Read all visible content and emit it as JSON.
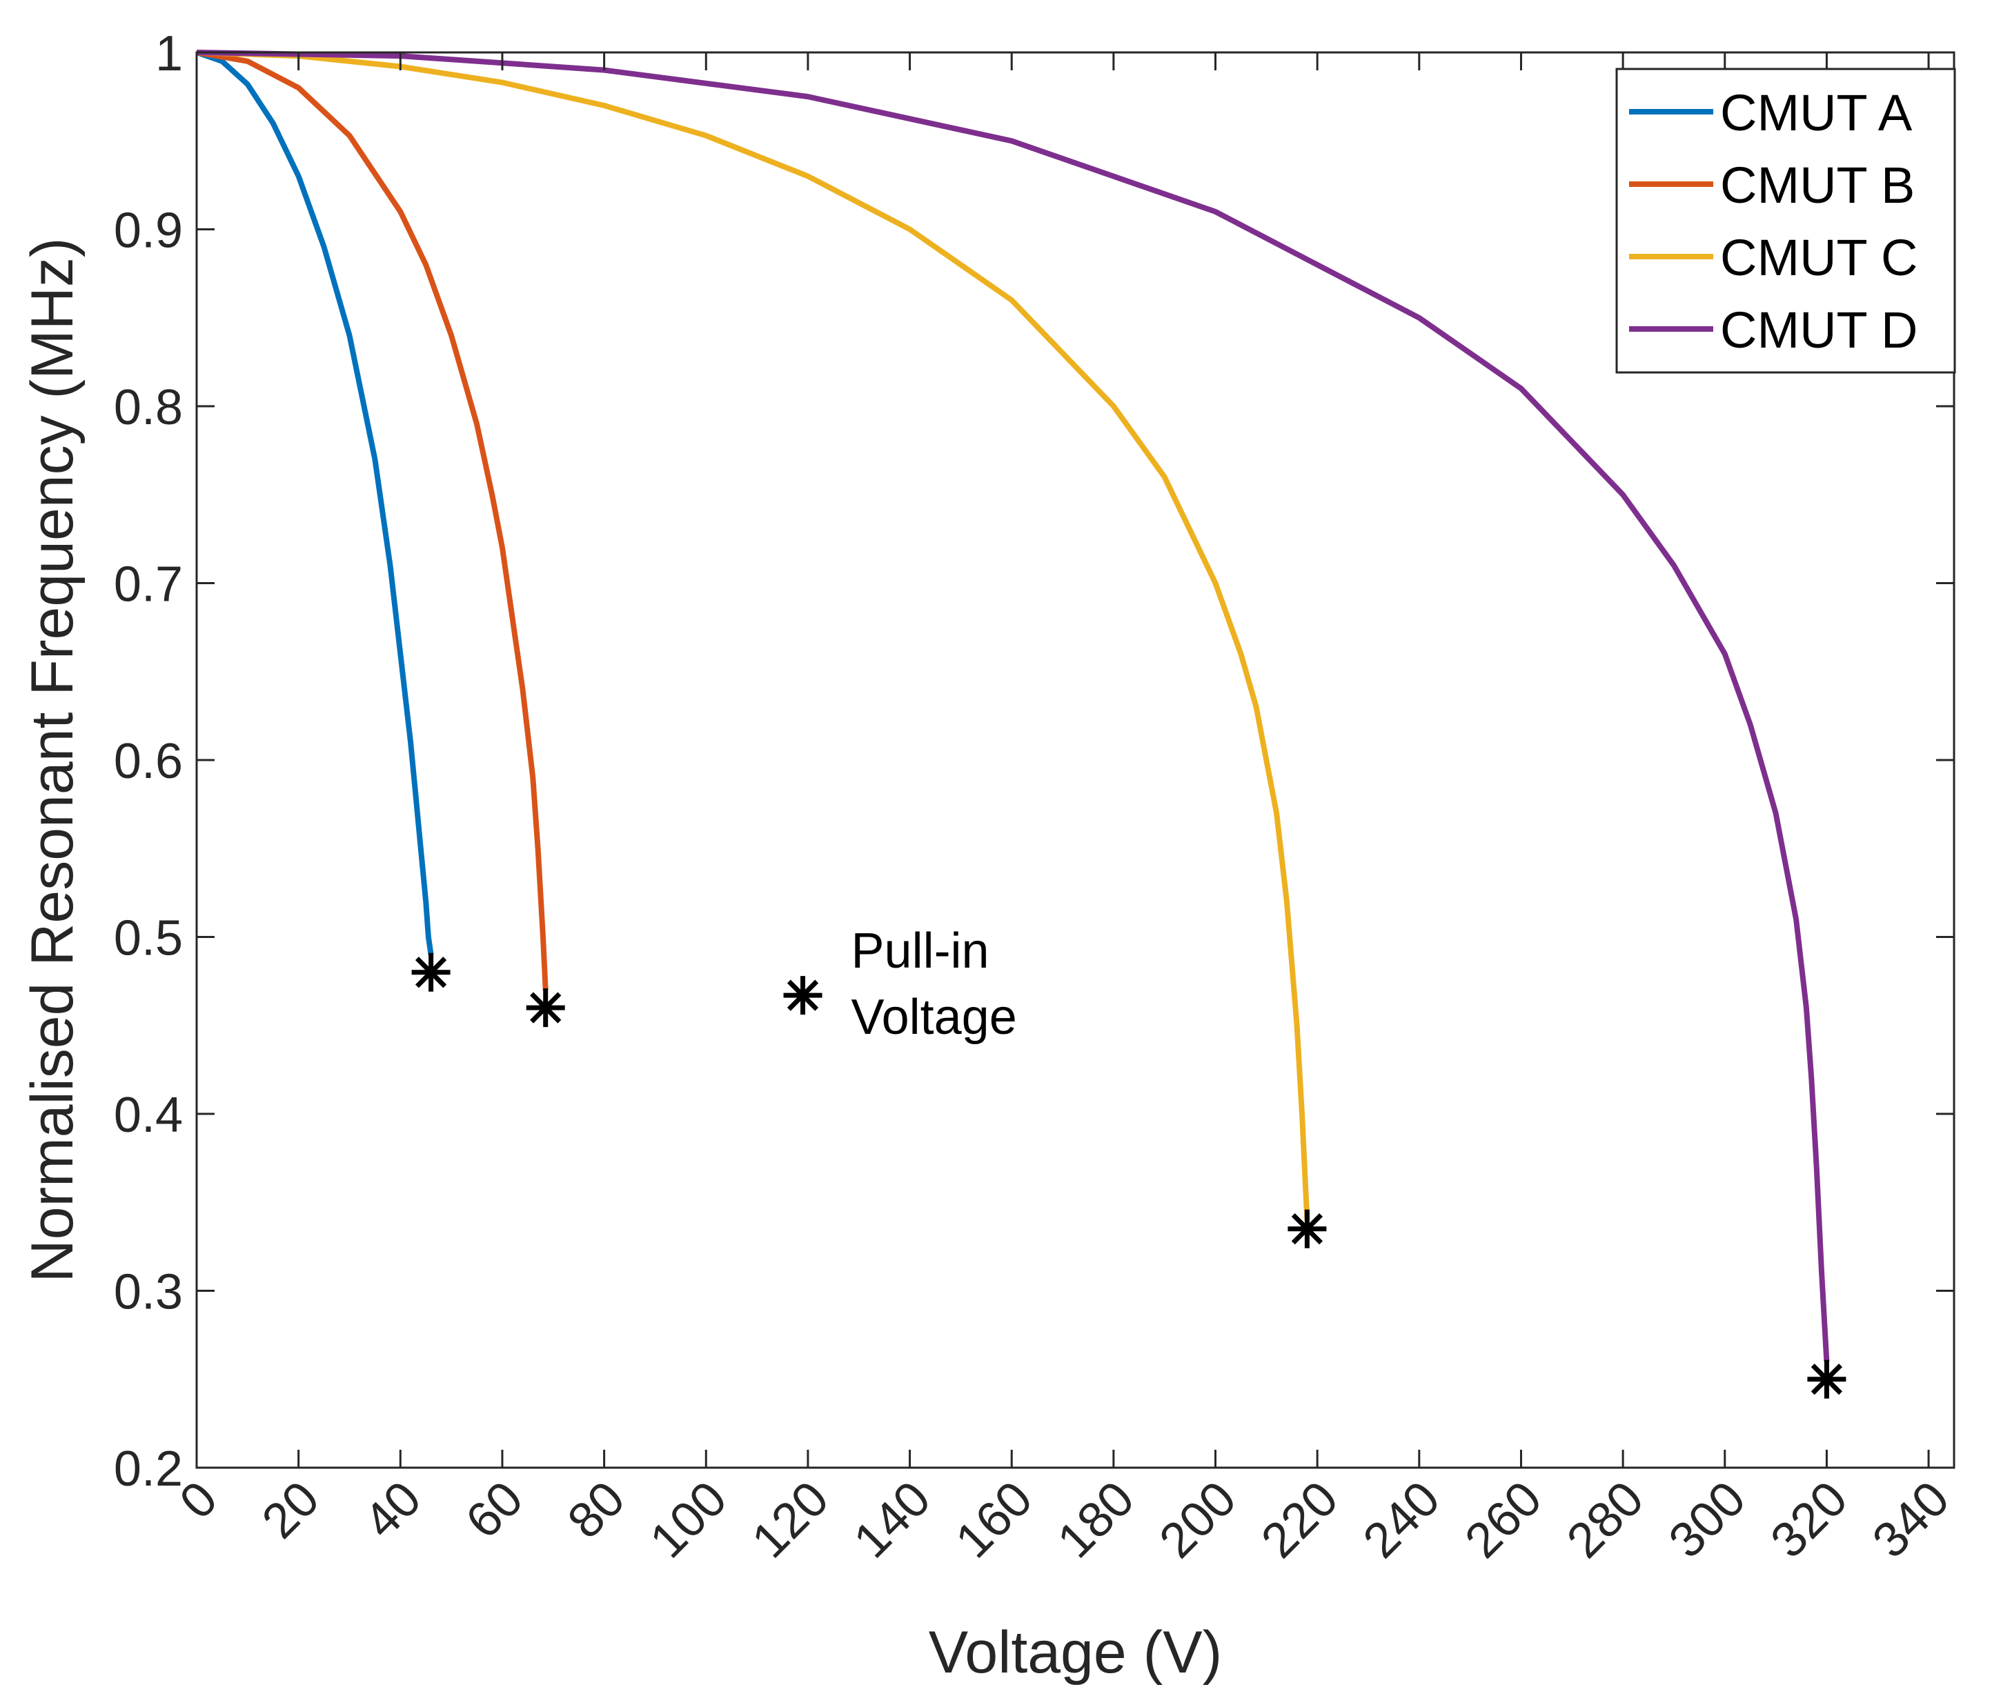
{
  "chart_data": {
    "type": "line",
    "title": "",
    "xlabel": "Voltage (V)",
    "ylabel": "Normalised Resonant Frequency (MHz)",
    "xlim": [
      0,
      345
    ],
    "ylim": [
      0.2,
      1.0
    ],
    "xticks": [
      0,
      20,
      40,
      60,
      80,
      100,
      120,
      140,
      160,
      180,
      200,
      220,
      240,
      260,
      280,
      300,
      320,
      340
    ],
    "xtick_labels": [
      "0",
      "20",
      "40",
      "60",
      "80",
      "100",
      "120",
      "140",
      "160",
      "180",
      "200",
      "220",
      "240",
      "260",
      "280",
      "300",
      "320",
      "340"
    ],
    "yticks": [
      0.2,
      0.3,
      0.4,
      0.5,
      0.6,
      0.7,
      0.8,
      0.9,
      1.0
    ],
    "ytick_labels": [
      "0.2",
      "0.3",
      "0.4",
      "0.5",
      "0.6",
      "0.7",
      "0.8",
      "0.9",
      "1"
    ],
    "grid": false,
    "legend_position": "top-right",
    "series": [
      {
        "name": "CMUT A",
        "color": "#0072BD",
        "x": [
          0,
          5,
          10,
          15,
          20,
          25,
          30,
          35,
          38,
          40,
          42,
          43,
          44,
          45,
          45.5,
          46
        ],
        "y": [
          1.0,
          0.995,
          0.982,
          0.96,
          0.93,
          0.89,
          0.84,
          0.77,
          0.71,
          0.66,
          0.61,
          0.58,
          0.55,
          0.52,
          0.5,
          0.49
        ]
      },
      {
        "name": "CMUT B",
        "color": "#D95319",
        "x": [
          0,
          10,
          20,
          30,
          40,
          45,
          50,
          55,
          58,
          60,
          62,
          64,
          66,
          67,
          68,
          68.5
        ],
        "y": [
          1.0,
          0.995,
          0.98,
          0.953,
          0.91,
          0.88,
          0.84,
          0.79,
          0.75,
          0.72,
          0.68,
          0.64,
          0.59,
          0.55,
          0.5,
          0.47
        ]
      },
      {
        "name": "CMUT C",
        "color": "#EDB120",
        "x": [
          0,
          20,
          40,
          60,
          80,
          100,
          120,
          140,
          160,
          180,
          190,
          200,
          205,
          208,
          210,
          212,
          214,
          216,
          217,
          218
        ],
        "y": [
          1.0,
          0.998,
          0.992,
          0.983,
          0.97,
          0.953,
          0.93,
          0.9,
          0.86,
          0.8,
          0.76,
          0.7,
          0.66,
          0.63,
          0.6,
          0.57,
          0.52,
          0.45,
          0.4,
          0.34
        ]
      },
      {
        "name": "CMUT D",
        "color": "#7E2F8E",
        "x": [
          0,
          40,
          80,
          120,
          160,
          200,
          240,
          260,
          280,
          290,
          300,
          305,
          310,
          314,
          316,
          317,
          318,
          319,
          320
        ],
        "y": [
          1.0,
          0.998,
          0.99,
          0.975,
          0.95,
          0.91,
          0.85,
          0.81,
          0.75,
          0.71,
          0.66,
          0.62,
          0.57,
          0.51,
          0.46,
          0.42,
          0.37,
          0.31,
          0.26
        ]
      }
    ],
    "markers": [
      {
        "series": "CMUT A",
        "x": 46,
        "y": 0.48
      },
      {
        "series": "CMUT B",
        "x": 68.5,
        "y": 0.46
      },
      {
        "series": "CMUT C",
        "x": 218,
        "y": 0.335
      },
      {
        "series": "CMUT D",
        "x": 320,
        "y": 0.25
      }
    ],
    "annotation": {
      "marker_x": 119,
      "marker_y": 0.467,
      "line1": "Pull-in",
      "line2": "Voltage"
    }
  }
}
